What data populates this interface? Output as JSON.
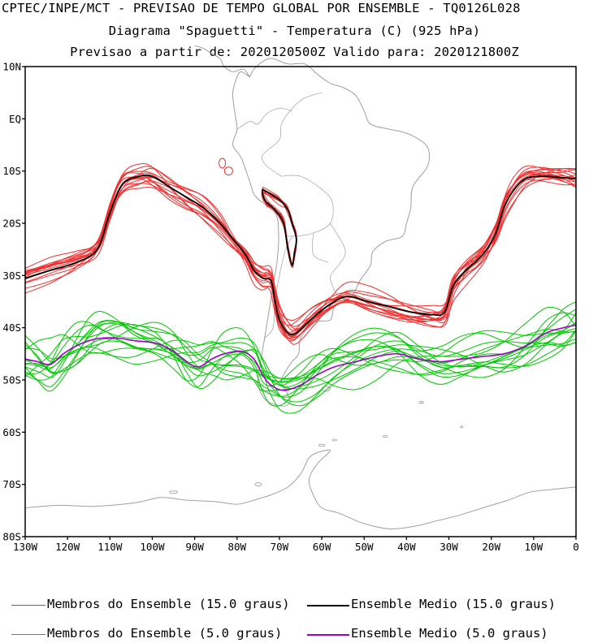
{
  "chart_data": {
    "type": "line",
    "title": "CPTEC/INPE/MCT - PREVISAO DE TEMPO GLOBAL POR ENSEMBLE - TQ0126L028",
    "subtitle": "Diagrama \"Spaguetti\" - Temperatura (C) (925 hPa)",
    "forecast_info": "Previsao a partir de: 2020120500Z   Valido para: 2020121800Z",
    "x_range": [
      -130,
      0
    ],
    "y_range": [
      -80,
      10
    ],
    "x_ticks": [
      {
        "v": -130,
        "label": "130W"
      },
      {
        "v": -120,
        "label": "120W"
      },
      {
        "v": -110,
        "label": "110W"
      },
      {
        "v": -100,
        "label": "100W"
      },
      {
        "v": -90,
        "label": "90W"
      },
      {
        "v": -80,
        "label": "80W"
      },
      {
        "v": -70,
        "label": "70W"
      },
      {
        "v": -60,
        "label": "60W"
      },
      {
        "v": -50,
        "label": "50W"
      },
      {
        "v": -40,
        "label": "40W"
      },
      {
        "v": -30,
        "label": "30W"
      },
      {
        "v": -20,
        "label": "20W"
      },
      {
        "v": -10,
        "label": "10W"
      },
      {
        "v": 0,
        "label": "0"
      }
    ],
    "y_ticks": [
      {
        "v": 10,
        "label": "10N"
      },
      {
        "v": 0,
        "label": "EQ"
      },
      {
        "v": -10,
        "label": "10S"
      },
      {
        "v": -20,
        "label": "20S"
      },
      {
        "v": -30,
        "label": "30S"
      },
      {
        "v": -40,
        "label": "40S"
      },
      {
        "v": -50,
        "label": "50S"
      },
      {
        "v": -60,
        "label": "60S"
      },
      {
        "v": -70,
        "label": "70S"
      },
      {
        "v": -80,
        "label": "80S"
      }
    ],
    "mean_15": {
      "name": "Ensemble Medio (15.0 graus)",
      "color": "#000000",
      "points": [
        [
          -130,
          -30.5
        ],
        [
          -124,
          -29
        ],
        [
          -118,
          -27.5
        ],
        [
          -113,
          -25
        ],
        [
          -110,
          -18
        ],
        [
          -107,
          -12.5
        ],
        [
          -103,
          -11
        ],
        [
          -100,
          -11
        ],
        [
          -96,
          -13
        ],
        [
          -92,
          -15
        ],
        [
          -88,
          -17
        ],
        [
          -84,
          -20
        ],
        [
          -81,
          -23
        ],
        [
          -78,
          -26
        ],
        [
          -76,
          -29
        ],
        [
          -74,
          -30.5
        ],
        [
          -72,
          -31
        ],
        [
          -71,
          -35
        ],
        [
          -70,
          -38.5
        ],
        [
          -68,
          -41
        ],
        [
          -66,
          -41
        ],
        [
          -62,
          -38
        ],
        [
          -58,
          -35.5
        ],
        [
          -54,
          -34
        ],
        [
          -49,
          -35
        ],
        [
          -44,
          -36
        ],
        [
          -39,
          -37
        ],
        [
          -34,
          -37.5
        ],
        [
          -31,
          -37
        ],
        [
          -29,
          -32
        ],
        [
          -26,
          -29
        ],
        [
          -22,
          -26
        ],
        [
          -19,
          -22
        ],
        [
          -17,
          -17
        ],
        [
          -15,
          -14
        ],
        [
          -12,
          -11.5
        ],
        [
          -8,
          -11
        ],
        [
          -3,
          -11.3
        ],
        [
          0,
          -11.5
        ]
      ],
      "inner_loop": [
        [
          -74,
          -13.5
        ],
        [
          -70,
          -15.5
        ],
        [
          -68,
          -17.5
        ],
        [
          -67,
          -20
        ],
        [
          -66,
          -23
        ],
        [
          -66.5,
          -26
        ],
        [
          -67,
          -28
        ],
        [
          -68,
          -25
        ],
        [
          -69,
          -20
        ],
        [
          -71,
          -17.5
        ],
        [
          -73,
          -16
        ],
        [
          -74,
          -14.5
        ],
        [
          -74,
          -13.5
        ]
      ]
    },
    "mean_5": {
      "name": "Ensemble Medio (5.0 graus)",
      "color": "#a000c8",
      "points": [
        [
          -130,
          -46
        ],
        [
          -127,
          -46.5
        ],
        [
          -124,
          -47
        ],
        [
          -121,
          -45
        ],
        [
          -118,
          -43.5
        ],
        [
          -115,
          -42.5
        ],
        [
          -112,
          -42
        ],
        [
          -108,
          -42
        ],
        [
          -104,
          -42.5
        ],
        [
          -99,
          -43
        ],
        [
          -95,
          -44.5
        ],
        [
          -92,
          -46.5
        ],
        [
          -89,
          -47.5
        ],
        [
          -86,
          -46
        ],
        [
          -83,
          -45
        ],
        [
          -79,
          -44.5
        ],
        [
          -76,
          -46
        ],
        [
          -74,
          -49
        ],
        [
          -72,
          -51
        ],
        [
          -69,
          -52
        ],
        [
          -65,
          -51
        ],
        [
          -61,
          -49
        ],
        [
          -57,
          -47.5
        ],
        [
          -52,
          -46.5
        ],
        [
          -47,
          -45.5
        ],
        [
          -42,
          -45
        ],
        [
          -37,
          -46
        ],
        [
          -32,
          -46.5
        ],
        [
          -27,
          -46
        ],
        [
          -22,
          -45.5
        ],
        [
          -17,
          -45
        ],
        [
          -12,
          -43.5
        ],
        [
          -7,
          -41
        ],
        [
          -3,
          -40
        ],
        [
          0,
          -39.5
        ]
      ]
    },
    "members_count": 15,
    "member_15_color": "#f03030",
    "member_5_color": "#00c800",
    "map_color": "#a0a0a0"
  },
  "legend": {
    "members_15": "Membros do Ensemble (15.0 graus)",
    "mean_15": "Ensemble Medio (15.0 graus)",
    "members_5": "Membros do Ensemble (5.0 graus)",
    "mean_5": "Ensemble Medio (5.0 graus)"
  }
}
